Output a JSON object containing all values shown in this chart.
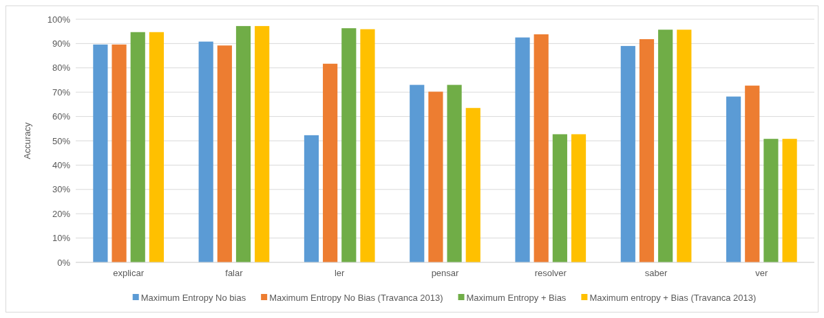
{
  "chart_data": {
    "type": "bar",
    "ylabel": "Accuracy",
    "categories": [
      "explicar",
      "falar",
      "ler",
      "pensar",
      "resolver",
      "saber",
      "ver"
    ],
    "series": [
      {
        "name": "Maximum Entropy No bias",
        "color": "#5b9bd5",
        "values": [
          89.6,
          90.8,
          52.3,
          73.0,
          92.5,
          89.0,
          68.2
        ]
      },
      {
        "name": "Maximum Entropy No Bias (Travanca 2013)",
        "color": "#ed7d31",
        "values": [
          89.6,
          89.2,
          81.7,
          70.2,
          93.8,
          91.8,
          72.7
        ]
      },
      {
        "name": "Maximum Entropy + Bias",
        "color": "#70ad47",
        "values": [
          94.7,
          97.2,
          96.3,
          73.0,
          52.7,
          95.7,
          50.8
        ]
      },
      {
        "name": "Maximum entropy + Bias (Travanca 2013)",
        "color": "#ffc000",
        "values": [
          94.7,
          97.2,
          95.9,
          63.5,
          52.7,
          95.7,
          50.8
        ]
      }
    ],
    "ylim": [
      0,
      100
    ],
    "yticks": [
      {
        "value": 0,
        "label": "0%"
      },
      {
        "value": 10,
        "label": "10%"
      },
      {
        "value": 20,
        "label": "20%"
      },
      {
        "value": 30,
        "label": "30%"
      },
      {
        "value": 40,
        "label": "40%"
      },
      {
        "value": 50,
        "label": "50%"
      },
      {
        "value": 60,
        "label": "60%"
      },
      {
        "value": 70,
        "label": "70%"
      },
      {
        "value": 80,
        "label": "80%"
      },
      {
        "value": 90,
        "label": "90%"
      },
      {
        "value": 100,
        "label": "100%"
      }
    ],
    "grid": "y",
    "legend": "bottom"
  }
}
